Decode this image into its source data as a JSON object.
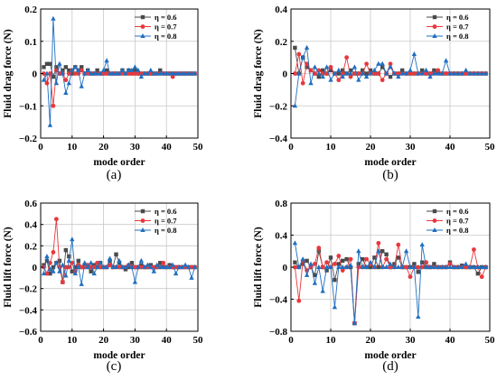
{
  "colors": {
    "eta_0_6": "#4a4a4a",
    "eta_0_7": "#e8383d",
    "eta_0_8": "#1f6fc0"
  },
  "chart_data": [
    {
      "panel": "(a)",
      "type": "line",
      "xlabel": "mode order",
      "ylabel": "Fluid drag force (N)",
      "xlim": [
        0,
        50
      ],
      "ylim": [
        -0.2,
        0.2
      ],
      "xticks": [
        "0",
        "10",
        "20",
        "30",
        "40",
        "50"
      ],
      "yticks": [
        "-0.20",
        "-0.15",
        "-0.10",
        "-0.05",
        "0",
        "0.05",
        "0.10",
        "0.15",
        "0.2"
      ],
      "yticks_display": [
        "−0.2",
        "−0.1",
        "0",
        "0.1",
        "0.2"
      ],
      "yticks_values": [
        -0.2,
        -0.1,
        0,
        0.1,
        0.2
      ],
      "grid": true,
      "legend": "top-right",
      "x": [
        1,
        2,
        3,
        4,
        5,
        6,
        7,
        8,
        9,
        10,
        11,
        12,
        13,
        14,
        15,
        16,
        17,
        18,
        19,
        20,
        21,
        22,
        23,
        24,
        25,
        26,
        27,
        28,
        29,
        30,
        31,
        32,
        33,
        34,
        35,
        36,
        37,
        38,
        39,
        40,
        41,
        42,
        43,
        44,
        45,
        46,
        47,
        48,
        49
      ],
      "series": [
        {
          "name": "η = 0.6",
          "values": [
            0.02,
            0.03,
            0.03,
            -0.01,
            0.02,
            0.0,
            0.01,
            0.02,
            0.01,
            0.0,
            0.02,
            0.01,
            0.02,
            0.0,
            0.01,
            0.0,
            0.0,
            0.01,
            0.0,
            0.0,
            0.01,
            0.0,
            0.0,
            0.0,
            0.0,
            0.01,
            0.0,
            0.01,
            0.0,
            0.01,
            0.0,
            0.0,
            0.0,
            0.0,
            0.0,
            0.0,
            0.0,
            0.01,
            0.0,
            0.0,
            0.0,
            0.0,
            0.0,
            0.0,
            0.0,
            0.0,
            0.0,
            0.0,
            0.0
          ]
        },
        {
          "name": "η = 0.7",
          "values": [
            0.0,
            -0.03,
            0.0,
            -0.1,
            0.01,
            0.0,
            0.0,
            -0.02,
            0.0,
            0.01,
            0.0,
            0.0,
            0.01,
            0.0,
            0.0,
            0.0,
            0.0,
            0.0,
            0.0,
            0.0,
            0.0,
            0.0,
            0.0,
            0.0,
            0.0,
            0.0,
            0.0,
            0.0,
            0.0,
            0.0,
            0.0,
            0.0,
            0.0,
            0.0,
            0.0,
            0.0,
            0.0,
            0.0,
            0.0,
            0.0,
            0.0,
            -0.01,
            0.0,
            0.0,
            0.0,
            0.0,
            0.0,
            0.0,
            0.0
          ]
        },
        {
          "name": "η = 0.8",
          "values": [
            -0.02,
            0.0,
            -0.16,
            0.17,
            -0.03,
            0.03,
            0.0,
            -0.06,
            -0.03,
            0.01,
            0.02,
            0.01,
            -0.04,
            0.0,
            0.01,
            0.0,
            0.0,
            0.0,
            0.0,
            0.01,
            0.04,
            0.0,
            0.0,
            0.0,
            0.0,
            0.01,
            0.0,
            0.01,
            0.01,
            0.02,
            0.01,
            -0.01,
            0.0,
            0.0,
            0.01,
            0.0,
            0.0,
            0.0,
            0.0,
            0.0,
            0.0,
            0.0,
            0.0,
            0.0,
            0.0,
            0.0,
            0.0,
            0.0,
            0.0
          ]
        }
      ]
    },
    {
      "panel": "(b)",
      "type": "line",
      "xlabel": "mode order",
      "ylabel": "Fluid drag force (N)",
      "xlim": [
        0,
        50
      ],
      "ylim": [
        -0.4,
        0.4
      ],
      "xticks": [
        "0",
        "10",
        "20",
        "30",
        "40",
        "50"
      ],
      "yticks_display": [
        "−0.4",
        "−0.2",
        "0",
        "0.2",
        "0.4"
      ],
      "yticks_values": [
        -0.4,
        -0.2,
        0,
        0.2,
        0.4
      ],
      "grid": true,
      "legend": "top-right",
      "x": [
        1,
        2,
        3,
        4,
        5,
        6,
        7,
        8,
        9,
        10,
        11,
        12,
        13,
        14,
        15,
        16,
        17,
        18,
        19,
        20,
        21,
        22,
        23,
        24,
        25,
        26,
        27,
        28,
        29,
        30,
        31,
        32,
        33,
        34,
        35,
        36,
        37,
        38,
        39,
        40,
        41,
        42,
        43,
        44,
        45,
        46,
        47,
        48,
        49
      ],
      "series": [
        {
          "name": "η = 0.6",
          "values": [
            0.16,
            0.0,
            0.1,
            0.04,
            0.02,
            0.0,
            -0.02,
            0.02,
            0.0,
            0.02,
            0.0,
            0.0,
            0.02,
            0.0,
            0.02,
            0.0,
            0.0,
            0.02,
            0.0,
            0.02,
            0.0,
            0.0,
            0.04,
            0.0,
            -0.02,
            0.0,
            0.0,
            0.02,
            0.0,
            0.0,
            0.0,
            0.0,
            0.02,
            0.0,
            0.0,
            0.02,
            0.0,
            0.0,
            0.0,
            0.0,
            0.0,
            0.0,
            0.0,
            0.0,
            0.0,
            0.0,
            0.0,
            0.0,
            0.0
          ]
        },
        {
          "name": "η = 0.7",
          "values": [
            0.0,
            0.12,
            -0.06,
            0.06,
            0.02,
            0.0,
            0.02,
            0.0,
            0.0,
            0.04,
            0.0,
            -0.04,
            0.0,
            0.1,
            -0.02,
            0.0,
            0.0,
            0.0,
            0.06,
            0.0,
            0.0,
            0.0,
            -0.04,
            0.0,
            0.06,
            0.0,
            0.0,
            0.0,
            0.0,
            0.0,
            0.0,
            0.0,
            0.0,
            0.0,
            0.0,
            0.0,
            0.02,
            0.0,
            0.0,
            0.0,
            0.0,
            0.0,
            0.0,
            0.0,
            0.0,
            0.0,
            0.0,
            0.0,
            0.0
          ]
        },
        {
          "name": "η = 0.8",
          "values": [
            -0.2,
            0.0,
            0.1,
            0.16,
            -0.06,
            0.04,
            0.0,
            -0.02,
            0.04,
            -0.04,
            0.0,
            0.02,
            -0.02,
            0.0,
            0.0,
            0.04,
            -0.04,
            0.0,
            -0.02,
            0.0,
            0.02,
            0.06,
            0.06,
            0.0,
            0.04,
            0.0,
            -0.02,
            0.0,
            0.0,
            0.02,
            0.12,
            0.0,
            0.0,
            0.02,
            -0.02,
            0.0,
            0.0,
            0.0,
            0.08,
            0.0,
            0.0,
            0.0,
            0.0,
            0.02,
            0.0,
            0.0,
            0.0,
            0.0,
            0.0
          ]
        }
      ]
    },
    {
      "panel": "(c)",
      "type": "line",
      "xlabel": "mode order",
      "ylabel": "Fluid  lift  force (N)",
      "xlim": [
        0,
        50
      ],
      "ylim": [
        -0.6,
        0.6
      ],
      "xticks": [
        "0",
        "10",
        "20",
        "30",
        "40",
        "50"
      ],
      "yticks_display": [
        "−0.6",
        "−0.4",
        "−0.2",
        "0",
        "0.2",
        "0.4",
        "0.6"
      ],
      "yticks_values": [
        -0.6,
        -0.4,
        -0.2,
        0,
        0.2,
        0.4,
        0.6
      ],
      "grid": true,
      "legend": "top-right",
      "x": [
        1,
        2,
        3,
        4,
        5,
        6,
        7,
        8,
        9,
        10,
        11,
        12,
        13,
        14,
        15,
        16,
        17,
        18,
        19,
        20,
        21,
        22,
        23,
        24,
        25,
        26,
        27,
        28,
        29,
        30,
        31,
        32,
        33,
        34,
        35,
        36,
        37,
        38,
        39,
        40,
        41,
        42,
        43,
        44,
        45,
        46,
        47,
        48,
        49
      ],
      "series": [
        {
          "name": "η = 0.6",
          "values": [
            0.02,
            0.06,
            -0.06,
            0.0,
            0.04,
            0.06,
            -0.14,
            0.16,
            0.1,
            -0.04,
            0.0,
            0.06,
            0.0,
            0.02,
            0.0,
            -0.04,
            0.02,
            0.0,
            0.04,
            0.0,
            0.0,
            0.06,
            0.0,
            0.12,
            0.04,
            0.0,
            -0.02,
            0.0,
            0.04,
            0.0,
            0.0,
            0.02,
            0.0,
            0.0,
            0.02,
            0.0,
            0.0,
            0.04,
            0.0,
            0.0,
            0.02,
            0.0,
            0.0,
            0.0,
            0.0,
            0.0,
            0.0,
            0.0,
            0.0
          ]
        },
        {
          "name": "η = 0.7",
          "values": [
            0.0,
            -0.06,
            0.04,
            0.14,
            0.45,
            0.0,
            -0.14,
            0.0,
            0.0,
            0.04,
            -0.04,
            0.02,
            0.0,
            0.0,
            0.02,
            0.0,
            0.0,
            0.04,
            0.0,
            0.0,
            0.0,
            0.02,
            0.0,
            0.0,
            0.0,
            0.0,
            0.0,
            0.02,
            0.0,
            0.0,
            0.0,
            0.0,
            0.0,
            0.0,
            0.0,
            0.0,
            0.0,
            0.0,
            0.04,
            0.0,
            0.0,
            0.0,
            0.0,
            0.0,
            0.0,
            0.0,
            0.0,
            0.0,
            0.0
          ]
        },
        {
          "name": "η = 0.8",
          "values": [
            -0.06,
            0.1,
            -0.02,
            -0.04,
            0.04,
            -0.04,
            0.02,
            -0.08,
            0.06,
            0.26,
            -0.06,
            0.0,
            -0.16,
            0.04,
            0.0,
            0.04,
            -0.06,
            0.0,
            0.04,
            0.0,
            0.0,
            0.08,
            0.0,
            0.0,
            0.06,
            0.0,
            0.0,
            0.02,
            0.0,
            -0.14,
            0.0,
            0.06,
            0.0,
            0.02,
            0.0,
            -0.04,
            0.02,
            0.0,
            0.0,
            0.0,
            0.0,
            0.02,
            -0.06,
            0.0,
            0.0,
            0.02,
            0.0,
            -0.1,
            0.0
          ]
        }
      ]
    },
    {
      "panel": "(d)",
      "type": "line",
      "xlabel": "mode order",
      "ylabel": "Fluid  lift  force (N)",
      "xlim": [
        0,
        50
      ],
      "ylim": [
        -0.8,
        0.8
      ],
      "xticks": [
        "0",
        "10",
        "20",
        "30",
        "40",
        "50"
      ],
      "yticks_display": [
        "−0.8",
        "−0.4",
        "0",
        "0.4",
        "0.8"
      ],
      "yticks_values": [
        -0.8,
        -0.4,
        0,
        0.4,
        0.8
      ],
      "grid": true,
      "legend": "top-right",
      "x": [
        1,
        2,
        3,
        4,
        5,
        6,
        7,
        8,
        9,
        10,
        11,
        12,
        13,
        14,
        15,
        16,
        17,
        18,
        19,
        20,
        21,
        22,
        23,
        24,
        25,
        26,
        27,
        28,
        29,
        30,
        31,
        32,
        33,
        34,
        35,
        36,
        37,
        38,
        39,
        40,
        41,
        42,
        43,
        44,
        45,
        46,
        47,
        48,
        49
      ],
      "series": [
        {
          "name": "η = 0.6",
          "values": [
            0.06,
            0.0,
            0.04,
            0.08,
            0.0,
            -0.1,
            0.2,
            0.0,
            -0.04,
            0.12,
            -0.16,
            0.04,
            0.08,
            0.1,
            0.0,
            -0.7,
            0.04,
            0.1,
            0.0,
            0.0,
            0.12,
            0.0,
            0.2,
            0.16,
            0.0,
            0.04,
            0.12,
            0.0,
            0.0,
            0.0,
            0.04,
            -0.06,
            0.06,
            0.0,
            0.0,
            0.04,
            0.0,
            0.0,
            0.0,
            0.06,
            0.0,
            0.0,
            0.02,
            0.0,
            0.0,
            0.0,
            -0.08,
            0.0,
            0.0
          ]
        },
        {
          "name": "η = 0.7",
          "values": [
            0.0,
            -0.42,
            0.08,
            -0.04,
            0.0,
            0.04,
            0.24,
            0.0,
            0.06,
            0.0,
            0.04,
            0.14,
            -0.04,
            0.0,
            0.1,
            -0.7,
            0.0,
            0.0,
            0.1,
            0.04,
            0.0,
            0.3,
            0.0,
            0.1,
            0.0,
            0.0,
            0.28,
            0.0,
            0.0,
            -0.12,
            0.0,
            0.0,
            0.0,
            0.06,
            0.0,
            0.0,
            0.0,
            0.0,
            0.0,
            0.04,
            0.0,
            0.0,
            0.0,
            0.0,
            0.0,
            0.22,
            0.0,
            -0.12,
            0.0
          ]
        },
        {
          "name": "η = 0.8",
          "values": [
            0.3,
            0.0,
            0.1,
            -0.1,
            0.04,
            -0.2,
            0.0,
            -0.3,
            0.0,
            0.0,
            -0.5,
            0.0,
            0.0,
            0.0,
            0.02,
            -0.7,
            0.2,
            0.0,
            0.0,
            0.06,
            0.0,
            0.2,
            0.0,
            0.0,
            0.04,
            0.0,
            0.0,
            0.0,
            0.2,
            0.0,
            0.0,
            -0.62,
            0.28,
            0.0,
            0.0,
            0.0,
            0.0,
            0.0,
            0.0,
            0.0,
            0.0,
            0.0,
            0.0,
            0.04,
            0.0,
            0.0,
            0.0,
            0.0,
            0.0
          ]
        }
      ]
    }
  ]
}
